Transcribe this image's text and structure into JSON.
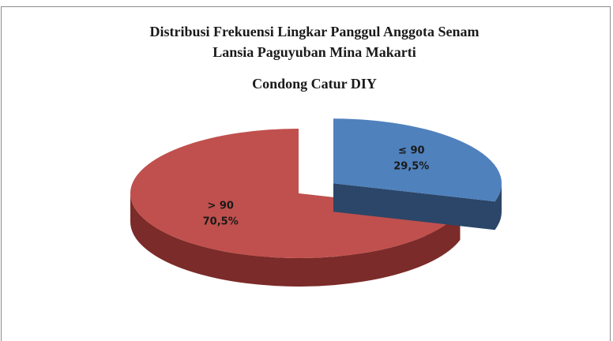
{
  "chart_data": {
    "type": "pie",
    "title": [
      "Distribusi Frekuensi Lingkar Panggul Anggota Senam",
      "Lansia  Paguyuban Mina Makarti",
      "Condong Catur DIY"
    ],
    "categories": [
      "≤ 90",
      "> 90"
    ],
    "values": [
      29.5,
      70.5
    ],
    "value_labels": [
      "29,5%",
      "70,5%"
    ],
    "colors": [
      "#4f81bd",
      "#c0504d"
    ],
    "side_colors": [
      "#2b4668",
      "#7b2b29"
    ],
    "exploded": [
      true,
      false
    ]
  }
}
